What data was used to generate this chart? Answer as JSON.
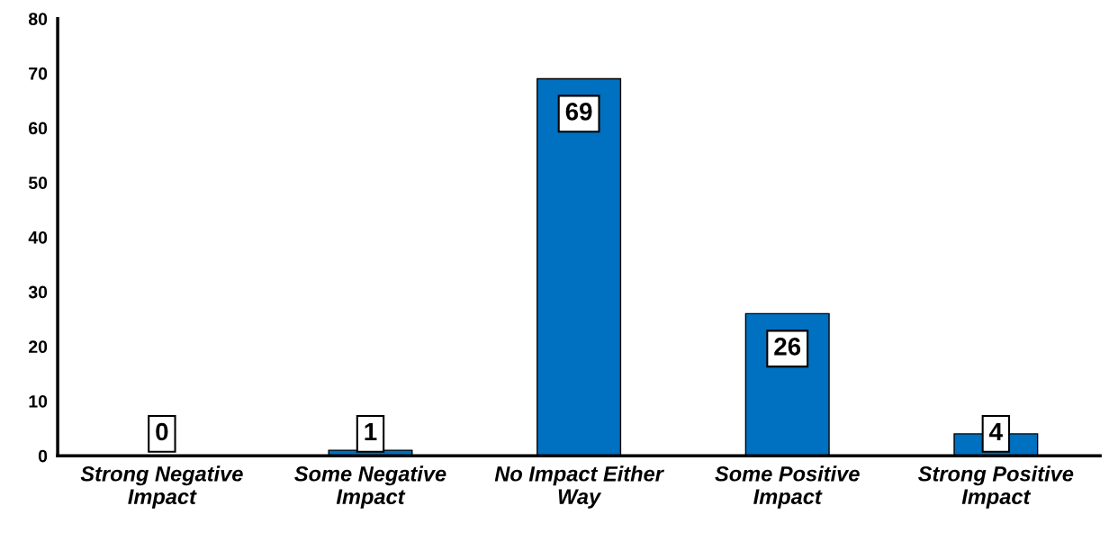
{
  "chart_data": {
    "type": "bar",
    "categories": [
      "Strong Negative\nImpact",
      "Some Negative\nImpact",
      "No Impact Either\nWay",
      "Some Positive\nImpact",
      "Strong Positive\nImpact"
    ],
    "values": [
      0,
      1,
      69,
      26,
      4
    ],
    "color": "#0070c0",
    "ylim": [
      0,
      80
    ],
    "yticks": [
      0,
      10,
      20,
      30,
      40,
      50,
      60,
      70,
      80
    ],
    "grid": false,
    "data_labels": true
  }
}
